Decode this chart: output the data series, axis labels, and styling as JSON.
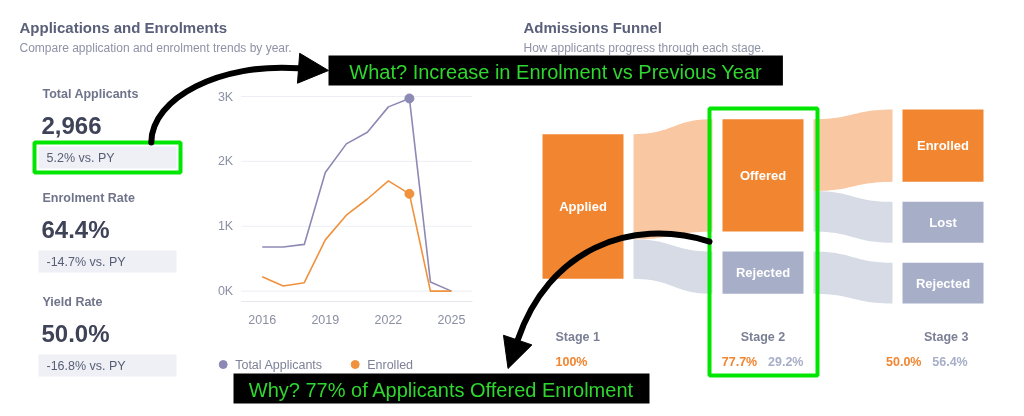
{
  "chart_data": [
    {
      "type": "other",
      "title": "Applications and Enrolments",
      "subtitle": "Compare application and enrolment trends by year.",
      "categories": [
        "Total Applicants",
        "Enrolment Rate",
        "Yield Rate"
      ],
      "value_labels": [
        "2,966",
        "64.4%",
        "50.0%"
      ],
      "annotations": [
        "5.2% vs. PY",
        "-14.7% vs. PY",
        "-16.8% vs. PY",
        {
          "text": "What? Increase in Enrolment vs Previous Year",
          "x": "Total Applicants"
        }
      ]
    },
    {
      "type": "line",
      "x": [
        2016,
        2017,
        2018,
        2019,
        2020,
        2021,
        2022,
        2023,
        2024,
        2025
      ],
      "xlim": [
        2015,
        2026
      ],
      "xticks": [
        2016,
        2019,
        2022,
        2025
      ],
      "ylim": [
        -160,
        3000
      ],
      "yticks": [
        {
          "value": 0,
          "label": "0K"
        },
        {
          "value": 1000,
          "label": "1K"
        },
        {
          "value": 2000,
          "label": "2K"
        },
        {
          "value": 3000,
          "label": "3K"
        }
      ],
      "grid": "y",
      "legend": "bottom",
      "series": [
        {
          "name": "Total Applicants",
          "color": "#8d89b5",
          "values": [
            680,
            680,
            720,
            1830,
            2270,
            2450,
            2840,
            2970,
            140,
            0
          ]
        },
        {
          "name": "Enrolled",
          "color": "#f0913d",
          "values": [
            220,
            80,
            130,
            790,
            1170,
            1420,
            1700,
            1500,
            0,
            0
          ]
        },
        {
          "type": "scatter",
          "marker": "circle",
          "color": "#8d89b5",
          "x": [
            2023
          ],
          "values": [
            2970
          ]
        },
        {
          "type": "scatter",
          "marker": "circle",
          "color": "#f0913d",
          "x": [
            2023
          ],
          "values": [
            1500
          ]
        }
      ]
    },
    {
      "type": "other",
      "title": "Admissions Funnel",
      "subtitle": "How applicants progress through each stage.",
      "categories": [
        "Stage 1",
        "Stage 2",
        "Stage 3"
      ],
      "series": [
        {
          "color": "#f28530",
          "values": [
            100,
            77.7,
            50.0
          ],
          "value_labels": [
            "100%",
            "77.7%",
            "50.0%"
          ]
        },
        {
          "color": "#a7aec8",
          "values": [
            null,
            29.2,
            56.4
          ],
          "value_labels": [
            null,
            "29.2%",
            "56.4%"
          ]
        }
      ],
      "annotations": [
        {
          "text": "Applied",
          "x": "Stage 1"
        },
        {
          "text": "Offered",
          "x": "Stage 2"
        },
        {
          "text": "Rejected",
          "x": "Stage 2"
        },
        {
          "text": "Enrolled",
          "x": "Stage 3"
        },
        {
          "text": "Lost",
          "x": "Stage 3"
        },
        {
          "text": "Rejected",
          "x": "Stage 3"
        },
        "Why? 77% of Applicants Offered Enrolment"
      ]
    }
  ]
}
